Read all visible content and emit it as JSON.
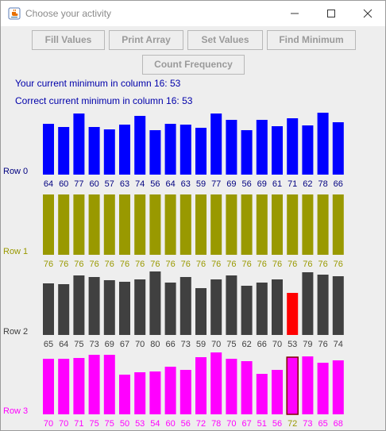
{
  "window": {
    "title": "Choose your activity"
  },
  "toolbar": {
    "buttons": [
      {
        "label": "Fill Values"
      },
      {
        "label": "Print Array"
      },
      {
        "label": "Set Values"
      },
      {
        "label": "Find Minimum"
      },
      {
        "label": "Count Frequency"
      }
    ]
  },
  "info": {
    "current_min": "Your current minimum in column 16: 53",
    "correct_min": "Correct current minimum in column 16: 53"
  },
  "colors": {
    "row0": "#0000ff",
    "row1": "#999900",
    "row2": "#404040",
    "row3": "#ff00ff",
    "label_row0": "#000080",
    "highlight_row2": "#ff0000",
    "highlight_row3_text": "#999900"
  },
  "chart_data": {
    "type": "bar",
    "rows": [
      {
        "label": "Row 0",
        "values": [
          64,
          60,
          77,
          60,
          57,
          63,
          74,
          56,
          64,
          63,
          59,
          77,
          69,
          56,
          69,
          61,
          71,
          62,
          78,
          66
        ]
      },
      {
        "label": "Row 1",
        "values": [
          76,
          76,
          76,
          76,
          76,
          76,
          76,
          76,
          76,
          76,
          76,
          76,
          76,
          76,
          76,
          76,
          76,
          76,
          76,
          76
        ]
      },
      {
        "label": "Row 2",
        "values": [
          65,
          64,
          75,
          73,
          69,
          67,
          70,
          80,
          66,
          73,
          59,
          70,
          75,
          62,
          66,
          70,
          53,
          79,
          76,
          74
        ],
        "highlight_index": 16
      },
      {
        "label": "Row 3",
        "values": [
          70,
          70,
          71,
          75,
          75,
          50,
          53,
          54,
          60,
          56,
          72,
          78,
          70,
          67,
          51,
          56,
          72,
          73,
          65,
          68
        ],
        "highlight_index": 16
      }
    ]
  }
}
